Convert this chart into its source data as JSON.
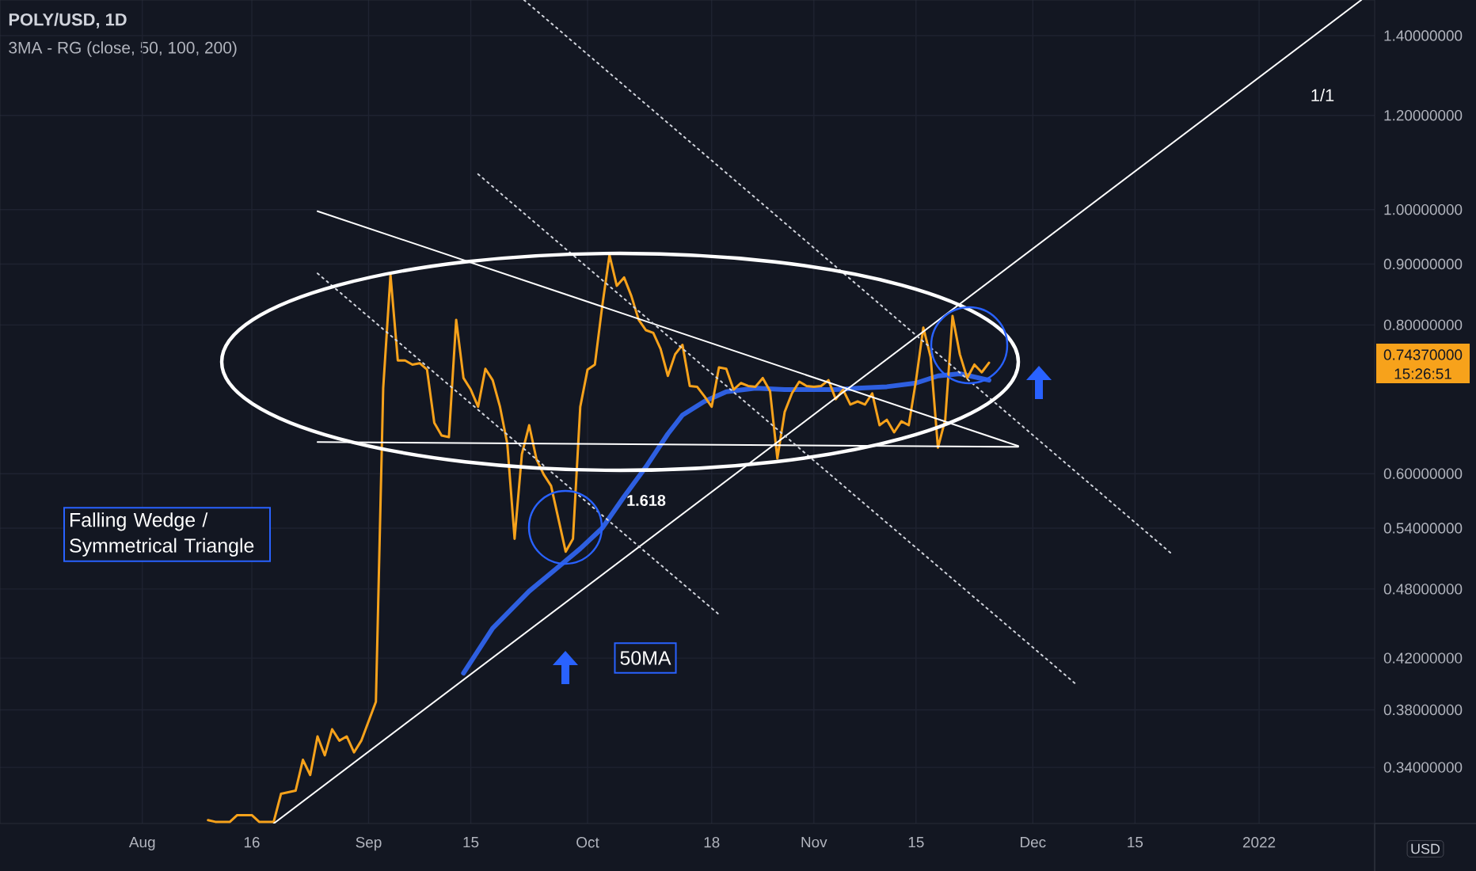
{
  "chart_data": {
    "type": "line",
    "title": "POLY/USD, 1D",
    "subtitle": "3MA - RG (close, 50, 100, 200)",
    "xlim": [
      "2021-07-12T12:00",
      "2022-01-16T20:00"
    ],
    "xticks": [
      {
        "value": "2021-08-01",
        "label": "Aug"
      },
      {
        "value": "2021-08-16",
        "label": "16"
      },
      {
        "value": "2021-09-01",
        "label": "Sep"
      },
      {
        "value": "2021-09-15",
        "label": "15"
      },
      {
        "value": "2021-10-01",
        "label": "Oct"
      },
      {
        "value": "2021-10-18",
        "label": "18"
      },
      {
        "value": "2021-11-01",
        "label": "Nov"
      },
      {
        "value": "2021-11-15",
        "label": "15"
      },
      {
        "value": "2021-12-01",
        "label": "Dec"
      },
      {
        "value": "2021-12-15",
        "label": "15"
      },
      "2022"
    ],
    "ylim": [
      0.305,
      1.5
    ],
    "yticks": [
      {
        "value": 0.34,
        "label": "0.34000000"
      },
      {
        "value": 0.38,
        "label": "0.38000000"
      },
      {
        "value": 0.42,
        "label": "0.42000000"
      },
      {
        "value": 0.48,
        "label": "0.48000000"
      },
      {
        "value": 0.54,
        "label": "0.54000000"
      },
      {
        "value": 0.6,
        "label": "0.60000000"
      },
      {
        "value": 0.8,
        "label": "0.80000000"
      },
      {
        "value": 0.9,
        "label": "0.90000000"
      },
      {
        "value": 1.0,
        "label": "1.00000000"
      },
      {
        "value": 1.2,
        "label": "1.20000000"
      },
      {
        "value": 1.4,
        "label": "1.40000000"
      }
    ],
    "log": "y",
    "grid": true,
    "series": [
      {
        "color": "#2e5fe0",
        "line_style": "solid",
        "x": [
          "2021-09-14",
          "2021-09-18",
          "2021-09-23",
          "2021-09-27",
          "2021-09-30",
          "2021-10-03",
          "2021-10-06",
          "2021-10-09",
          "2021-10-12",
          "2021-10-14",
          "2021-10-17",
          "2021-10-20",
          "2021-10-24",
          "2021-10-28",
          "2021-10-31",
          "2021-11-04",
          "2021-11-07",
          "2021-11-11",
          "2021-11-15",
          "2021-11-18",
          "2021-11-21",
          "2021-11-25"
        ],
        "values": [
          0.408,
          0.445,
          0.478,
          0.501,
          0.519,
          0.54,
          0.574,
          0.608,
          0.648,
          0.672,
          0.69,
          0.703,
          0.708,
          0.706,
          0.706,
          0.706,
          0.708,
          0.71,
          0.715,
          0.725,
          0.728,
          0.719
        ]
      },
      {
        "color": "#f7a21b",
        "line_style": "solid",
        "x": [
          "2021-08-10",
          "2021-08-11",
          "2021-08-13",
          "2021-08-14",
          "2021-08-16",
          "2021-08-17",
          "2021-08-19",
          "2021-08-20",
          "2021-08-22",
          "2021-08-23",
          "2021-08-24",
          "2021-08-25",
          "2021-08-26",
          "2021-08-27",
          "2021-08-28",
          "2021-08-29",
          "2021-08-30",
          "2021-08-31",
          "2021-09-02",
          "2021-09-03",
          "2021-09-04",
          "2021-09-05",
          "2021-09-06",
          "2021-09-07",
          "2021-09-08",
          "2021-09-09",
          "2021-09-10",
          "2021-09-11",
          "2021-09-12",
          "2021-09-13",
          "2021-09-14",
          "2021-09-15",
          "2021-09-16",
          "2021-09-17",
          "2021-09-18",
          "2021-09-19",
          "2021-09-20",
          "2021-09-21",
          "2021-09-22",
          "2021-09-23",
          "2021-09-24",
          "2021-09-25",
          "2021-09-26",
          "2021-09-28",
          "2021-09-29",
          "2021-09-30",
          "2021-10-01",
          "2021-10-02",
          "2021-10-03",
          "2021-10-04",
          "2021-10-05",
          "2021-10-06",
          "2021-10-07",
          "2021-10-08",
          "2021-10-09",
          "2021-10-10",
          "2021-10-11",
          "2021-10-12",
          "2021-10-13",
          "2021-10-14",
          "2021-10-15",
          "2021-10-16",
          "2021-10-17",
          "2021-10-18",
          "2021-10-19",
          "2021-10-20",
          "2021-10-21",
          "2021-10-22",
          "2021-10-23",
          "2021-10-24",
          "2021-10-25",
          "2021-10-26",
          "2021-10-27",
          "2021-10-28",
          "2021-10-29",
          "2021-10-30",
          "2021-10-31",
          "2021-11-01",
          "2021-11-02",
          "2021-11-03",
          "2021-11-04",
          "2021-11-05",
          "2021-11-06",
          "2021-11-07",
          "2021-11-08",
          "2021-11-09",
          "2021-11-10",
          "2021-11-11",
          "2021-11-12",
          "2021-11-13",
          "2021-11-14",
          "2021-11-15",
          "2021-11-16",
          "2021-11-17",
          "2021-11-18",
          "2021-11-19",
          "2021-11-20",
          "2021-11-21",
          "2021-11-22",
          "2021-11-23",
          "2021-11-24",
          "2021-11-25"
        ],
        "values": [
          0.307,
          0.306,
          0.306,
          0.31,
          0.31,
          0.306,
          0.306,
          0.323,
          0.325,
          0.345,
          0.335,
          0.361,
          0.348,
          0.366,
          0.358,
          0.361,
          0.35,
          0.358,
          0.386,
          0.708,
          0.881,
          0.747,
          0.747,
          0.741,
          0.743,
          0.734,
          0.662,
          0.646,
          0.644,
          0.808,
          0.722,
          0.706,
          0.683,
          0.735,
          0.719,
          0.683,
          0.636,
          0.529,
          0.623,
          0.659,
          0.617,
          0.599,
          0.586,
          0.516,
          0.529,
          0.683,
          0.734,
          0.741,
          0.829,
          0.916,
          0.863,
          0.877,
          0.846,
          0.808,
          0.792,
          0.788,
          0.764,
          0.725,
          0.756,
          0.77,
          0.711,
          0.71,
          0.697,
          0.683,
          0.737,
          0.735,
          0.706,
          0.715,
          0.711,
          0.71,
          0.722,
          0.704,
          0.618,
          0.676,
          0.701,
          0.717,
          0.711,
          0.71,
          0.711,
          0.719,
          0.693,
          0.706,
          0.686,
          0.69,
          0.686,
          0.701,
          0.659,
          0.666,
          0.65,
          0.664,
          0.659,
          0.719,
          0.796,
          0.752,
          0.631,
          0.666,
          0.814,
          0.756,
          0.722,
          0.741,
          0.73,
          0.7437
        ]
      },
      {
        "color": "#ffffff",
        "line_style": "solid",
        "x": [
          "2021-08-25",
          "2021-11-29"
        ],
        "values": [
          0.997,
          0.633
        ]
      },
      {
        "color": "#ffffff",
        "line_style": "solid",
        "x": [
          "2021-08-25",
          "2021-11-29"
        ],
        "values": [
          0.638,
          0.632
        ]
      },
      {
        "color": "#ffffff",
        "line_style": "solid",
        "x": [
          "2021-08-19",
          "2022-01-15"
        ],
        "values": [
          0.305,
          1.5
        ]
      },
      {
        "color": "#d1d4dc",
        "line_style": "dotted",
        "x": [
          "2021-08-25",
          "2021-10-19"
        ],
        "values": [
          0.884,
          0.457
        ]
      },
      {
        "color": "#d1d4dc",
        "line_style": "dotted",
        "x": [
          "2021-09-16",
          "2021-12-07"
        ],
        "values": [
          1.071,
          0.399
        ]
      },
      {
        "color": "#d1d4dc",
        "line_style": "dotted",
        "x": [
          "2021-09-22T07:00",
          "2021-12-20"
        ],
        "values": [
          1.5,
          0.514
        ]
      }
    ],
    "annotations": [
      "Falling Wedge / Symmetrical Triangle",
      "50MA",
      "1.618",
      "1/1",
      "USD",
      "0.74370000",
      "15:26:51"
    ]
  }
}
